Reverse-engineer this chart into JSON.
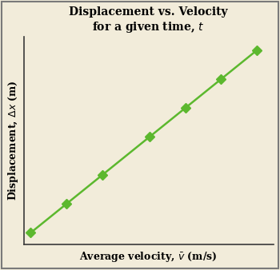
{
  "title_line1": "Displacement vs. Velocity",
  "title_line2": "for a given time, $\\mathit{t}$",
  "xlabel": "Average velocity, $\\bar{v}$ (m/s)",
  "ylabel": "Displacement, $\\Delta x$ (m)",
  "x_data": [
    0.0,
    0.15,
    0.3,
    0.5,
    0.65,
    0.8,
    0.95
  ],
  "y_data": [
    0.0,
    0.15,
    0.3,
    0.5,
    0.65,
    0.8,
    0.95
  ],
  "line_color": "#5cb82e",
  "marker_color": "#5cb82e",
  "marker_style": "D",
  "marker_size": 6,
  "line_width": 1.8,
  "background_color": "#f2ecda",
  "spine_color": "#3a3a3a",
  "border_color": "#7a7a7a",
  "title_fontsize": 10,
  "axis_label_fontsize": 9,
  "xlim": [
    -0.03,
    1.02
  ],
  "ylim": [
    -0.06,
    1.02
  ],
  "fig_width": 3.5,
  "fig_height": 3.38,
  "dpi": 100
}
